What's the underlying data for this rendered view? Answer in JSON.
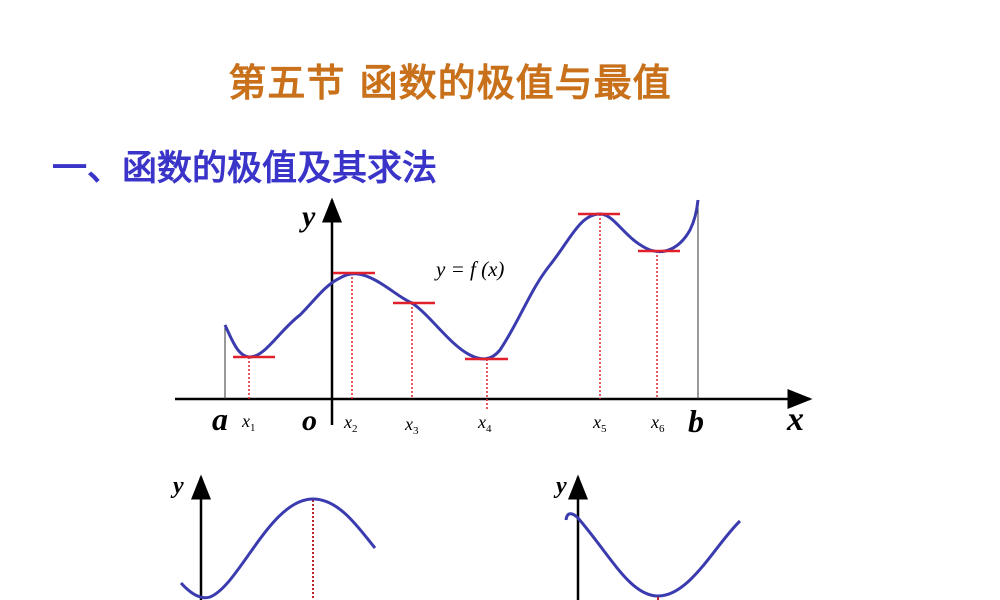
{
  "slide": {
    "title": "第五节  函数的极值与最值",
    "subtitle": "一、函数的极值及其求法"
  },
  "diagram": {
    "function_label": "y = f (x)",
    "y_axis_label": "y",
    "x_axis_label": "x",
    "origin_label": "o",
    "interval_start": "a",
    "interval_end": "b",
    "points": [
      "x1",
      "x2",
      "x3",
      "x4",
      "x5",
      "x6"
    ],
    "bottom_left_y_label": "y",
    "bottom_right_y_label": "y"
  },
  "colors": {
    "title": "#c8701a",
    "subtitle": "#3a35c8",
    "curve": "#3b3bb0",
    "tangent": "#e0202a"
  }
}
